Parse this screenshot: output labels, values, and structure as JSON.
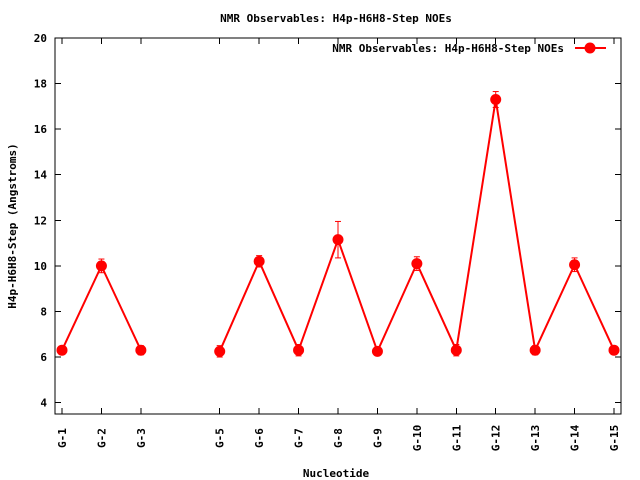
{
  "chart_data": {
    "type": "line",
    "title": "NMR Observables: H4p-H6H8-Step NOEs",
    "xlabel": "Nucleotide",
    "ylabel": "H4p-H6H8-Step (Angstroms)",
    "legend_position": "top-right",
    "grid": false,
    "x_ticks": [
      "G-1",
      "G-2",
      "G-3",
      "G-5",
      "G-6",
      "G-7",
      "G-8",
      "G-9",
      "G-10",
      "G-11",
      "G-12",
      "G-13",
      "G-14",
      "G-15"
    ],
    "x_positions": [
      1,
      2,
      3,
      5,
      6,
      7,
      8,
      9,
      10,
      11,
      12,
      13,
      14,
      15
    ],
    "xlim": [
      1,
      15
    ],
    "ylim": [
      3.5,
      20
    ],
    "y_ticks": [
      4,
      6,
      8,
      10,
      12,
      14,
      16,
      18,
      20
    ],
    "series": [
      {
        "name": "NMR Observables: H4p-H6H8-Step NOEs",
        "color": "#ff0000",
        "segments": [
          [
            {
              "label": "G-1",
              "x": 1,
              "y": 6.3,
              "error": 0.15
            },
            {
              "label": "G-2",
              "x": 2,
              "y": 10.0,
              "error": 0.3
            },
            {
              "label": "G-3",
              "x": 3,
              "y": 6.3,
              "error": 0.2
            }
          ],
          [
            {
              "label": "G-5",
              "x": 5,
              "y": 6.25,
              "error": 0.25
            },
            {
              "label": "G-6",
              "x": 6,
              "y": 10.2,
              "error": 0.25
            },
            {
              "label": "G-7",
              "x": 7,
              "y": 6.3,
              "error": 0.25
            },
            {
              "label": "G-8",
              "x": 8,
              "y": 11.15,
              "error": 0.8
            },
            {
              "label": "G-9",
              "x": 9,
              "y": 6.25,
              "error": 0.15
            },
            {
              "label": "G-10",
              "x": 10,
              "y": 10.1,
              "error": 0.3
            },
            {
              "label": "G-11",
              "x": 11,
              "y": 6.3,
              "error": 0.25
            },
            {
              "label": "G-12",
              "x": 12,
              "y": 17.3,
              "error": 0.35
            },
            {
              "label": "G-13",
              "x": 13,
              "y": 6.3,
              "error": 0.2
            },
            {
              "label": "G-14",
              "x": 14,
              "y": 10.05,
              "error": 0.3
            },
            {
              "label": "G-15",
              "x": 15,
              "y": 6.3,
              "error": 0.15
            }
          ]
        ]
      }
    ]
  }
}
